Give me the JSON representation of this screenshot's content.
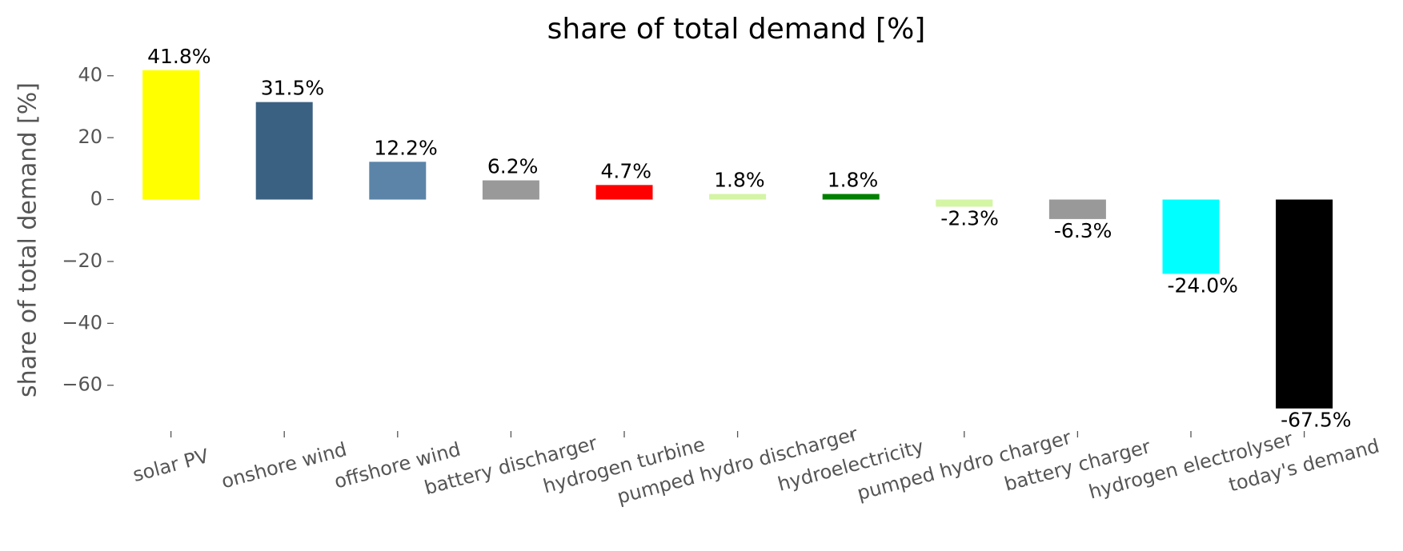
{
  "chart_data": {
    "type": "bar",
    "title": "share of total demand [%]",
    "y_label": "share of total demand [%]",
    "categories": [
      "solar PV",
      "onshore wind",
      "offshore wind",
      "battery discharger",
      "hydrogen turbine",
      "pumped hydro discharger",
      "hydroelectricity",
      "pumped hydro charger",
      "battery charger",
      "hydrogen electrolyser",
      "today's demand"
    ],
    "values": [
      41.8,
      31.5,
      12.2,
      6.2,
      4.7,
      1.8,
      1.8,
      -2.3,
      -6.3,
      -24.0,
      -67.5
    ],
    "value_labels": [
      "41.8%",
      "31.5%",
      "12.2%",
      "6.2%",
      "4.7%",
      "1.8%",
      "1.8%",
      "-2.3%",
      "-6.3%",
      "-24.0%",
      "-67.5%"
    ],
    "colors": [
      "#ffff00",
      "#3b6182",
      "#5b84a8",
      "#999999",
      "#ff0000",
      "#d4f5a4",
      "#008000",
      "#d4f5a4",
      "#999999",
      "#00ffff",
      "#000000"
    ],
    "ylim": [
      -74.8,
      48.2
    ],
    "yticks": [
      {
        "value": -60,
        "label": "−60"
      },
      {
        "value": -40,
        "label": "−40"
      },
      {
        "value": -20,
        "label": "−20"
      },
      0,
      20,
      40
    ],
    "grid": false
  }
}
